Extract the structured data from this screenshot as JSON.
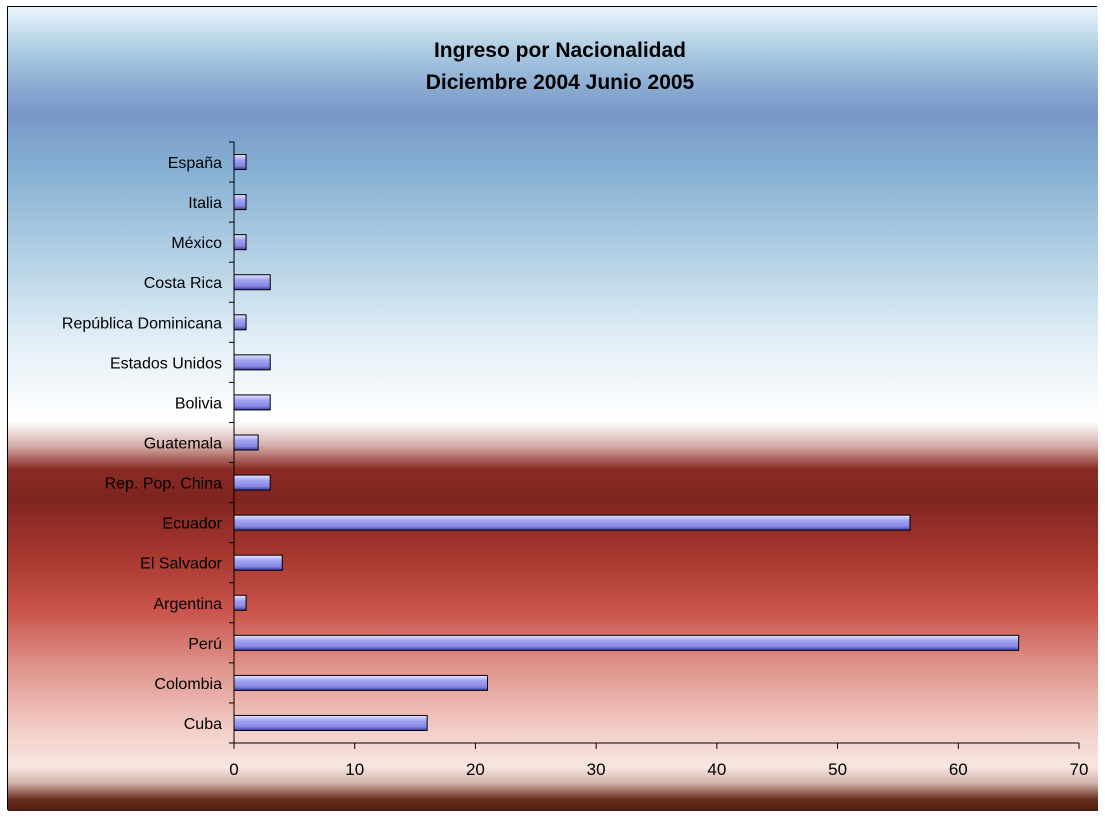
{
  "chart_data": {
    "type": "bar",
    "orientation": "horizontal",
    "title": "Ingreso por Nacionalidad",
    "subtitle": "Diciembre 2004 Junio 2005",
    "categories": [
      "España",
      "Italia",
      "México",
      "Costa Rica",
      "República Dominicana",
      "Estados Unidos",
      "Bolivia",
      "Guatemala",
      "Rep. Pop. China",
      "Ecuador",
      "El Salvador",
      "Argentina",
      "Perú",
      "Colombia",
      "Cuba"
    ],
    "values": [
      1,
      1,
      1,
      3,
      1,
      3,
      3,
      2,
      3,
      56,
      4,
      1,
      65,
      21,
      16
    ],
    "xlim": [
      0,
      70
    ],
    "xticks": [
      0,
      10,
      20,
      30,
      40,
      50,
      60,
      70
    ],
    "grid": false,
    "legend": "none",
    "colors": {
      "bar_fill": "#9a9aee",
      "bar_stroke": "#000000"
    }
  }
}
